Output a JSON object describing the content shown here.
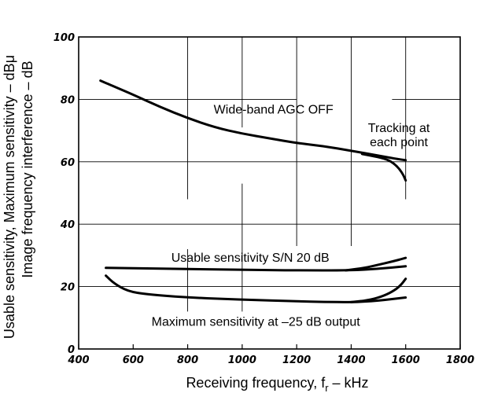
{
  "chart_data": {
    "type": "line",
    "xlabel": "Receiving frequency, f",
    "xlabel_sub": "r",
    "xlabel_unit": " – kHz",
    "ylabel_line1": "Usable sensitivity, Maximum sensitivity – dBμ",
    "ylabel_line2": "Image frequency interference – dB",
    "xlim": [
      400,
      1800
    ],
    "ylim": [
      0,
      100
    ],
    "x_ticks": [
      "400",
      "600",
      "800",
      "1000",
      "1200",
      "1400",
      "1600",
      "1800"
    ],
    "y_ticks": [
      "0",
      "20",
      "40",
      "60",
      "80",
      "100"
    ],
    "grid": "partial",
    "series": [
      {
        "x": [
          480,
          520,
          600,
          700,
          800,
          900,
          1000,
          1100,
          1200,
          1300,
          1400,
          1500,
          1560,
          1600
        ],
        "y": [
          86,
          84.5,
          81.5,
          77.5,
          74,
          71,
          69,
          67.5,
          66,
          65,
          63.5,
          62,
          61,
          60.5
        ]
      },
      {
        "x": [
          1440,
          1500,
          1540,
          1570,
          1590,
          1600
        ],
        "y": [
          62.5,
          61.5,
          60.5,
          58.5,
          56,
          54
        ]
      },
      {
        "x": [
          500,
          600,
          800,
          1000,
          1200,
          1400,
          1500,
          1600
        ],
        "y": [
          26,
          25.9,
          25.6,
          25.4,
          25.2,
          25.2,
          25.7,
          26.5
        ]
      },
      {
        "x": [
          1380,
          1450,
          1500,
          1550,
          1600
        ],
        "y": [
          25.2,
          26,
          27,
          28,
          29.2
        ]
      },
      {
        "x": [
          500,
          530,
          580,
          650,
          800,
          1000,
          1200,
          1300,
          1400,
          1450,
          1500,
          1550,
          1600
        ],
        "y": [
          23.5,
          21,
          18.5,
          17.5,
          16.5,
          15.8,
          15.3,
          15.1,
          15,
          15.2,
          15.5,
          16,
          16.5
        ]
      },
      {
        "x": [
          1400,
          1460,
          1510,
          1550,
          1580,
          1600
        ],
        "y": [
          15,
          15.6,
          16.7,
          18.3,
          20.2,
          22.5
        ]
      }
    ],
    "annotations": [
      {
        "text": "Wide-band AGC OFF",
        "x": 1115,
        "y": 77
      },
      {
        "text": "Tracking at",
        "x": 1575,
        "y": 71
      },
      {
        "text": "each point",
        "x": 1575,
        "y": 66.5
      },
      {
        "text": "Usable sensitivity S/N 20 dB",
        "x": 1030,
        "y": 29.5
      },
      {
        "text": "Maximum sensitivity at –25 dB output",
        "x": 1050,
        "y": 9
      }
    ]
  }
}
